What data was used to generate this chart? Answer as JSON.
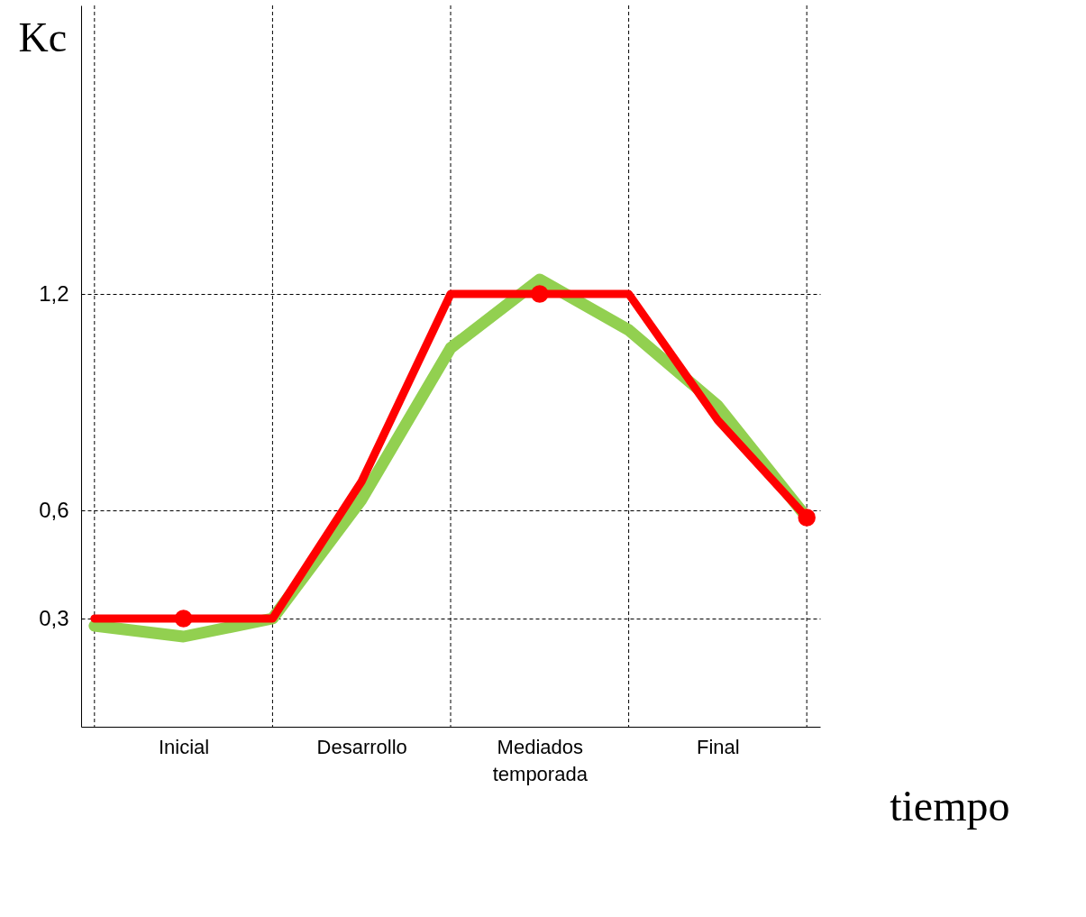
{
  "chart_data": {
    "type": "line",
    "ylabel": "Kc",
    "xlabel": "tiempo",
    "categories": [
      null,
      "Inicial",
      null,
      "Desarrollo",
      null,
      "Mediados temporada",
      null,
      "Final",
      null
    ],
    "ylim": [
      0,
      2
    ],
    "yticks": [
      {
        "value": 0.3,
        "label": "0,3"
      },
      {
        "value": 0.6,
        "label": "0,6"
      },
      {
        "value": 1.2,
        "label": "1,2"
      }
    ],
    "grid": true,
    "series": [
      {
        "color": "#92d050",
        "values": [
          0.28,
          0.25,
          0.3,
          0.63,
          1.05,
          1.24,
          1.1,
          0.89,
          0.58
        ]
      },
      {
        "color": "#ff0000",
        "values": [
          0.3,
          0.3,
          0.3,
          0.68,
          1.2,
          1.2,
          1.2,
          0.85,
          0.58
        ]
      },
      {
        "type": "scatter",
        "color": "#ff0000",
        "values": [
          null,
          0.3,
          null,
          null,
          null,
          1.2,
          null,
          null,
          0.58
        ]
      }
    ]
  }
}
